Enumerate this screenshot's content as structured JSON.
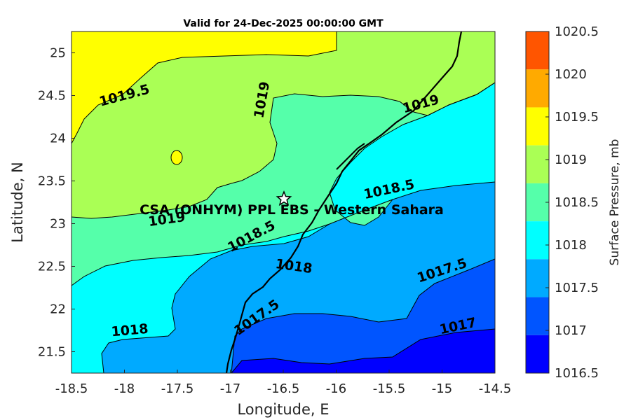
{
  "title": "Valid for 24-Dec-2025 00:00:00 GMT",
  "site_label": "CSA (ONHYM) PPL EBS - Western Sahara",
  "site_location": {
    "lon": -16.5,
    "lat": 23.3
  },
  "chart_data": {
    "type": "contour",
    "title": "Valid for 24-Dec-2025 00:00:00 GMT",
    "xlabel": "Longitude, E",
    "ylabel": "Latitude, N",
    "xlim": [
      -18.5,
      -14.5
    ],
    "ylim": [
      21.25,
      25.25
    ],
    "xticks": [
      "-18.5",
      "-18",
      "-17.5",
      "-17",
      "-16.5",
      "-16",
      "-15.5",
      "-15",
      "-14.5"
    ],
    "yticks": [
      "21.5",
      "22",
      "22.5",
      "23",
      "23.5",
      "24",
      "24.5",
      "25"
    ],
    "variable": "Surface Pressure, mb",
    "contour_levels": [
      1016.5,
      1017,
      1017.5,
      1018,
      1018.5,
      1019,
      1019.5,
      1020,
      1020.5
    ],
    "contour_labels": [
      {
        "text": "1019.5",
        "lon": -18.0,
        "lat": 24.45
      },
      {
        "text": "1019",
        "lon": -16.7,
        "lat": 24.4
      },
      {
        "text": "1019",
        "lon": -15.2,
        "lat": 24.35
      },
      {
        "text": "1018.5",
        "lon": -15.5,
        "lat": 23.35
      },
      {
        "text": "1019",
        "lon": -17.6,
        "lat": 23.0
      },
      {
        "text": "1018.5",
        "lon": -16.8,
        "lat": 22.8
      },
      {
        "text": "1018",
        "lon": -16.4,
        "lat": 22.45
      },
      {
        "text": "1017.5",
        "lon": -15.0,
        "lat": 22.4
      },
      {
        "text": "1018",
        "lon": -17.95,
        "lat": 21.7
      },
      {
        "text": "1017.5",
        "lon": -16.75,
        "lat": 21.85
      },
      {
        "text": "1017",
        "lon": -14.85,
        "lat": 21.75
      }
    ],
    "colorbar": {
      "label": "Surface Pressure, mb",
      "ticks": [
        "1020.5",
        "1020",
        "1019.5",
        "1019",
        "1018.5",
        "1018",
        "1017.5",
        "1017",
        "1016.5"
      ],
      "colors": [
        "#ff5500",
        "#ffaa00",
        "#ffff00",
        "#aaff55",
        "#55ffaa",
        "#00ffff",
        "#00aaff",
        "#0055ff",
        "#0000ff"
      ]
    }
  }
}
